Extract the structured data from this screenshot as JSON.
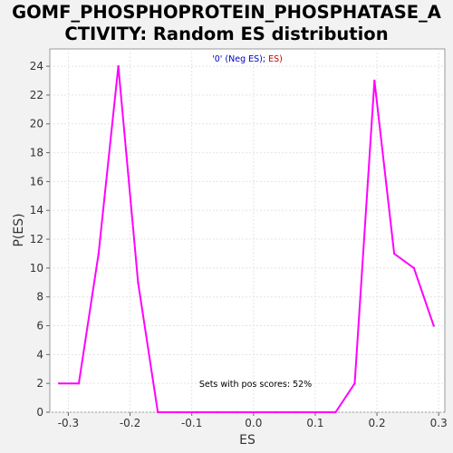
{
  "chart_data": {
    "type": "line",
    "title_lines": [
      "GOMF_PHOSPHOPROTEIN_PHOSPHATASE_A",
      "CTIVITY: Random ES distribution"
    ],
    "xlabel": "ES",
    "ylabel": "P(ES)",
    "xlim": [
      -0.33,
      0.31
    ],
    "ylim": [
      0,
      25.2
    ],
    "xticks": [
      -0.3,
      -0.2,
      -0.1,
      0.0,
      0.1,
      0.2,
      0.3
    ],
    "xtick_labels": [
      "-0.3",
      "-0.2",
      "-0.1",
      "0.0",
      "0.1",
      "0.2",
      "0.3"
    ],
    "yticks": [
      0,
      2,
      4,
      6,
      8,
      10,
      12,
      14,
      16,
      18,
      20,
      22,
      24
    ],
    "ytick_labels": [
      "0",
      "2",
      "4",
      "6",
      "8",
      "10",
      "12",
      "14",
      "16",
      "18",
      "20",
      "22",
      "24"
    ],
    "grid": true,
    "legend": {
      "neg_label": "'0' (Neg ES)",
      "separator": ";",
      "pos_label": " ES)",
      "neg_color": "#0000cc",
      "pos_color": "#cc0000"
    },
    "annotation": "Sets with pos scores: 52%",
    "series": [
      {
        "name": "Random ES",
        "color": "#ff00ff",
        "x": [
          -0.315,
          -0.283,
          -0.251,
          -0.219,
          -0.187,
          -0.155,
          -0.123,
          -0.091,
          -0.059,
          -0.027,
          0.005,
          0.037,
          0.069,
          0.101,
          0.133,
          0.164,
          0.196,
          0.228,
          0.26,
          0.292
        ],
        "y": [
          2,
          2,
          11,
          24,
          9,
          0,
          0,
          0,
          0,
          0,
          0,
          0,
          0,
          0,
          0,
          2,
          23,
          11,
          10,
          6
        ]
      }
    ]
  }
}
